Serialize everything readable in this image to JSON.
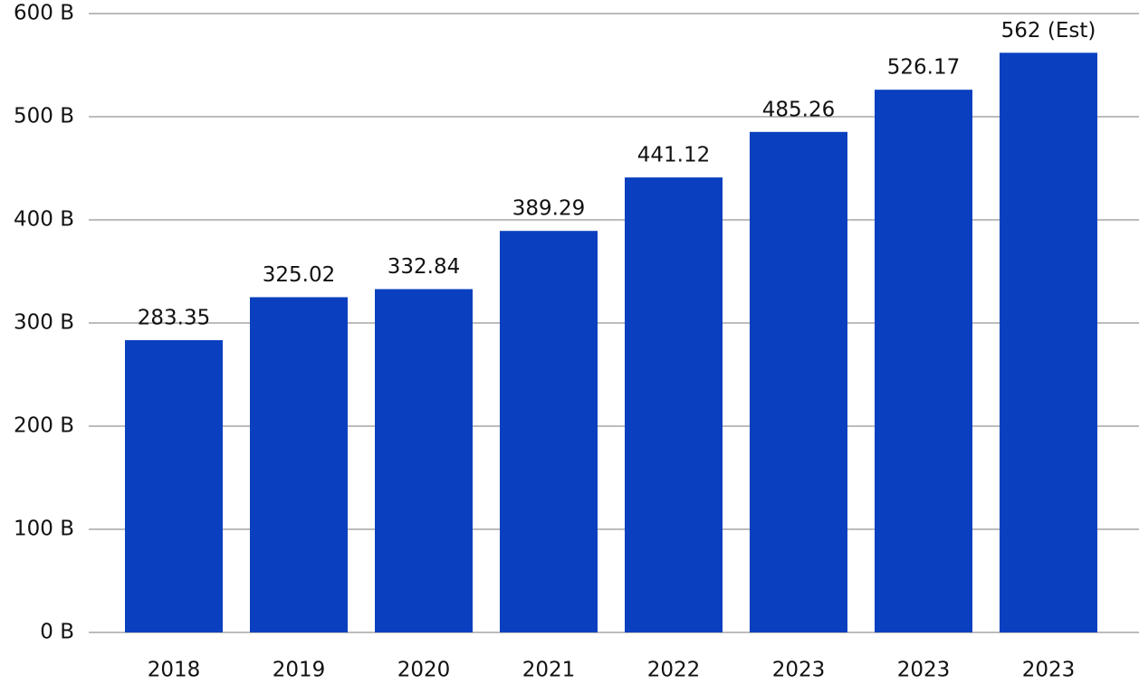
{
  "chart_data": {
    "type": "bar",
    "categories": [
      "2018",
      "2019",
      "2020",
      "2021",
      "2022",
      "2023",
      "2023",
      "2023"
    ],
    "values": [
      283.35,
      325.02,
      332.84,
      389.29,
      441.12,
      485.26,
      526.17,
      562
    ],
    "value_labels": [
      "283.35",
      "325.02",
      "332.84",
      "389.29",
      "441.12",
      "485.26",
      "526.17",
      "562 (Est)"
    ],
    "color": "#0a40bf",
    "ylim": [
      0,
      600
    ],
    "yticks": [
      {
        "value": 0,
        "label": "0 B"
      },
      {
        "value": 100,
        "label": "100 B"
      },
      {
        "value": 200,
        "label": "200 B"
      },
      {
        "value": 300,
        "label": "300 B"
      },
      {
        "value": 400,
        "label": "400 B"
      },
      {
        "value": 500,
        "label": "500 B"
      },
      {
        "value": 600,
        "label": "600 B"
      }
    ],
    "grid": true
  }
}
